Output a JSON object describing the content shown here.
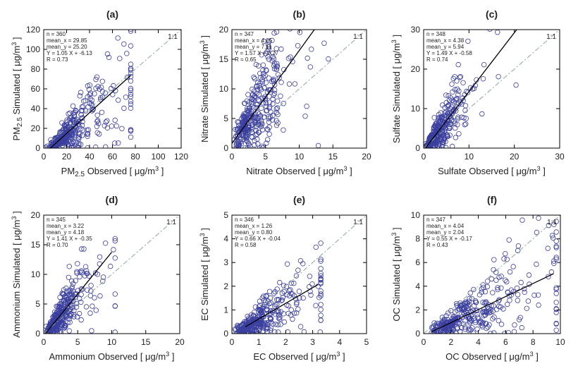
{
  "chart_data": [
    {
      "id": "a",
      "panel_label": "(a)",
      "type": "scatter",
      "xlabel": "PM2.5 Observed [ μg/m3 ]",
      "ylabel": "PM2.5 Simulated [ μg/m3 ]",
      "xlabel_parts": {
        "pre": "PM",
        "sub": "2.5",
        "post": " Observed [ μg/m",
        "sup": "3",
        "end": " ]"
      },
      "ylabel_parts": {
        "pre": "PM",
        "sub": "2.5",
        "post": " Simulated [ μg/m",
        "sup": "3",
        "end": " ]"
      },
      "xlim": [
        0,
        120
      ],
      "ylim": [
        0,
        120
      ],
      "xticks": [
        0,
        20,
        40,
        60,
        80,
        100,
        120
      ],
      "yticks": [
        0,
        20,
        40,
        60,
        80,
        100,
        120
      ],
      "stats": [
        "n = 360",
        "mean_x = 29.85",
        "mean_y = 25.20",
        "Y = 1.05 X + -6.13",
        "R = 0.73"
      ],
      "one_to_one_label": "1:1",
      "n": 360,
      "mean_x": 29.85,
      "mean_y": 25.2,
      "slope": 1.05,
      "intercept": -6.13,
      "r": 0.73,
      "fit_x_range": [
        5,
        76
      ],
      "x_max_points": 76,
      "noise_scale": 1.0
    },
    {
      "id": "b",
      "panel_label": "(b)",
      "type": "scatter",
      "xlabel": "Nitrate Observed [ μg/m3 ]",
      "ylabel": "Nitrate Simulated [ μg/m3 ]",
      "xlabel_parts": {
        "pre": "Nitrate Observed [ μg/m",
        "sub": "",
        "post": "",
        "sup": "3",
        "end": " ]"
      },
      "ylabel_parts": {
        "pre": "Nitrate Simulated [ μg/m",
        "sub": "",
        "post": "",
        "sup": "3",
        "end": " ]"
      },
      "xlim": [
        0,
        20
      ],
      "ylim": [
        0,
        20
      ],
      "xticks": [
        0,
        5,
        10,
        15,
        20
      ],
      "yticks": [
        0,
        5,
        10,
        15,
        20
      ],
      "stats": [
        "n = 347",
        "mean_x = 4.05",
        "mean_y = 7.11",
        "Y = 1.57 X + 0.77",
        "R = 0.65"
      ],
      "one_to_one_label": "1:1",
      "n": 347,
      "mean_x": 4.05,
      "mean_y": 7.11,
      "slope": 1.57,
      "intercept": 0.77,
      "r": 0.65,
      "fit_x_range": [
        0,
        12.3
      ],
      "x_max_points": 19,
      "noise_scale": 1.0
    },
    {
      "id": "c",
      "panel_label": "(c)",
      "type": "scatter",
      "xlabel": "Sulfate Observed [ μg/m3 ]",
      "ylabel": "Sulfate Simulated [ μg/m3 ]",
      "xlabel_parts": {
        "pre": "Sulfate Observed [ μg/m",
        "sub": "",
        "post": "",
        "sup": "3",
        "end": " ]"
      },
      "ylabel_parts": {
        "pre": "Sulfate Simulated [ μg/m",
        "sub": "",
        "post": "",
        "sup": "3",
        "end": " ]"
      },
      "xlim": [
        0,
        30
      ],
      "ylim": [
        0,
        30
      ],
      "xticks": [
        0,
        10,
        20,
        30
      ],
      "yticks": [
        0,
        10,
        20,
        30
      ],
      "stats": [
        "n = 348",
        "mean_x = 4.38",
        "mean_y = 5.94",
        "Y = 1.49 X + -0.58",
        "R = 0.74"
      ],
      "one_to_one_label": "1:1",
      "n": 348,
      "mean_x": 4.38,
      "mean_y": 5.94,
      "slope": 1.49,
      "intercept": -0.58,
      "r": 0.74,
      "fit_x_range": [
        0.5,
        20.5
      ],
      "x_max_points": 26,
      "noise_scale": 1.0
    },
    {
      "id": "d",
      "panel_label": "(d)",
      "type": "scatter",
      "xlabel": "Ammonium Observed [ μg/m3 ]",
      "ylabel": "Ammonium Simulated [ μg/m3 ]",
      "xlabel_parts": {
        "pre": "Ammonium Observed [ μg/m",
        "sub": "",
        "post": "",
        "sup": "3",
        "end": " ]"
      },
      "ylabel_parts": {
        "pre": "Ammonium Simulated [ μg/m",
        "sub": "",
        "post": "",
        "sup": "3",
        "end": " ]"
      },
      "xlim": [
        0,
        20
      ],
      "ylim": [
        0,
        20
      ],
      "xticks": [
        0,
        5,
        10,
        15,
        20
      ],
      "yticks": [
        0,
        5,
        10,
        15,
        20
      ],
      "stats": [
        "n = 345",
        "mean_x = 3.22",
        "mean_y = 4.18",
        "Y = 1.41 X + -0.35",
        "R = 0.70"
      ],
      "one_to_one_label": "1:1",
      "n": 345,
      "mean_x": 3.22,
      "mean_y": 4.18,
      "slope": 1.41,
      "intercept": -0.35,
      "r": 0.7,
      "fit_x_range": [
        0.3,
        10
      ],
      "x_max_points": 10.5,
      "noise_scale": 1.0
    },
    {
      "id": "e",
      "panel_label": "(e)",
      "type": "scatter",
      "xlabel": "EC Observed [ μg/m3 ]",
      "ylabel": "EC Simulated [ μg/m3 ]",
      "xlabel_parts": {
        "pre": "EC Observed [ μg/m",
        "sub": "",
        "post": "",
        "sup": "3",
        "end": " ]"
      },
      "ylabel_parts": {
        "pre": "EC Simulated [ μg/m",
        "sub": "",
        "post": "",
        "sup": "3",
        "end": " ]"
      },
      "xlim": [
        0,
        5
      ],
      "ylim": [
        0,
        5
      ],
      "xticks": [
        0,
        1,
        2,
        3,
        4,
        5
      ],
      "yticks": [
        0,
        1,
        2,
        3,
        4,
        5
      ],
      "stats": [
        "n = 346",
        "mean_x = 1.26",
        "mean_y = 0.80",
        "Y = 0.66 X + -0.04",
        "R = 0.58"
      ],
      "one_to_one_label": "1:1",
      "n": 346,
      "mean_x": 1.26,
      "mean_y": 0.8,
      "slope": 0.66,
      "intercept": -0.04,
      "r": 0.58,
      "fit_x_range": [
        0.5,
        3.2
      ],
      "x_max_points": 3.3,
      "noise_scale": 1.0
    },
    {
      "id": "f",
      "panel_label": "(f)",
      "type": "scatter",
      "xlabel": "OC Observed [ μg/m3 ]",
      "ylabel": "OC Simulated [ μg/m3 ]",
      "xlabel_parts": {
        "pre": "OC Observed [ μg/m",
        "sub": "",
        "post": "",
        "sup": "3",
        "end": " ]"
      },
      "ylabel_parts": {
        "pre": "OC Simulated [ μg/m",
        "sub": "",
        "post": "",
        "sup": "3",
        "end": " ]"
      },
      "xlim": [
        0,
        10
      ],
      "ylim": [
        0,
        10
      ],
      "xticks": [
        0,
        2,
        4,
        6,
        8,
        10
      ],
      "yticks": [
        0,
        2,
        4,
        6,
        8,
        10
      ],
      "stats": [
        "n = 347",
        "mean_x = 4.04",
        "mean_y = 2.04",
        "Y = 0.55 X + -0.17",
        "R = 0.43"
      ],
      "one_to_one_label": "1:1",
      "n": 347,
      "mean_x": 4.04,
      "mean_y": 2.04,
      "slope": 0.55,
      "intercept": -0.17,
      "r": 0.43,
      "fit_x_range": [
        0.6,
        9.5
      ],
      "x_max_points": 9.7,
      "noise_scale": 1.0
    }
  ]
}
